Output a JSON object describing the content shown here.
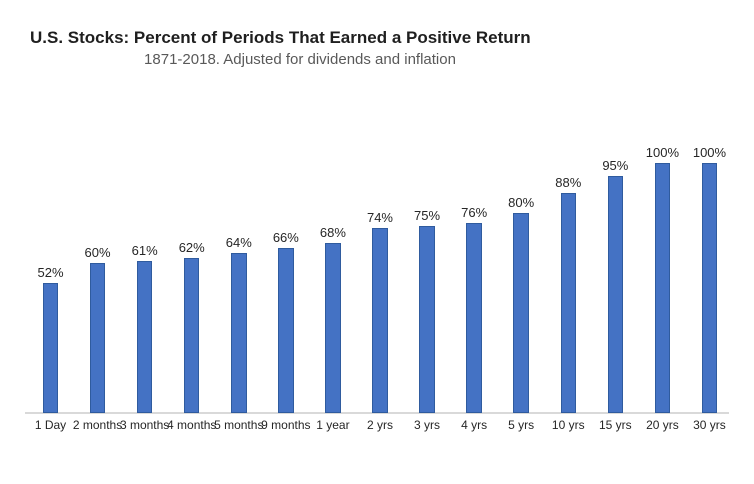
{
  "chart_data": {
    "type": "bar",
    "title": "U.S. Stocks: Percent of Periods That Earned a Positive Return",
    "subtitle": "1871-2018. Adjusted for dividends and inflation",
    "categories": [
      "1 Day",
      "2 months",
      "3 months",
      "4 months",
      "5 months",
      "9 months",
      "1 year",
      "2 yrs",
      "3 yrs",
      "4 yrs",
      "5 yrs",
      "10 yrs",
      "15 yrs",
      "20 yrs",
      "30 yrs"
    ],
    "values": [
      52,
      60,
      61,
      62,
      64,
      66,
      68,
      74,
      75,
      76,
      80,
      88,
      95,
      100,
      100
    ],
    "value_labels": [
      "52%",
      "60%",
      "61%",
      "62%",
      "64%",
      "66%",
      "68%",
      "74%",
      "75%",
      "76%",
      "80%",
      "88%",
      "95%",
      "100%",
      "100%"
    ],
    "xlabel": "",
    "ylabel": "",
    "ylim": [
      0,
      100
    ],
    "grid": false,
    "legend": false,
    "colors": {
      "bar_fill": "#4472C4",
      "bar_border": "#2F5B9E",
      "axis_line": "#D9D9D9",
      "title_text": "#1F1F1F",
      "subtitle_text": "#595959",
      "label_text": "#262626"
    }
  }
}
